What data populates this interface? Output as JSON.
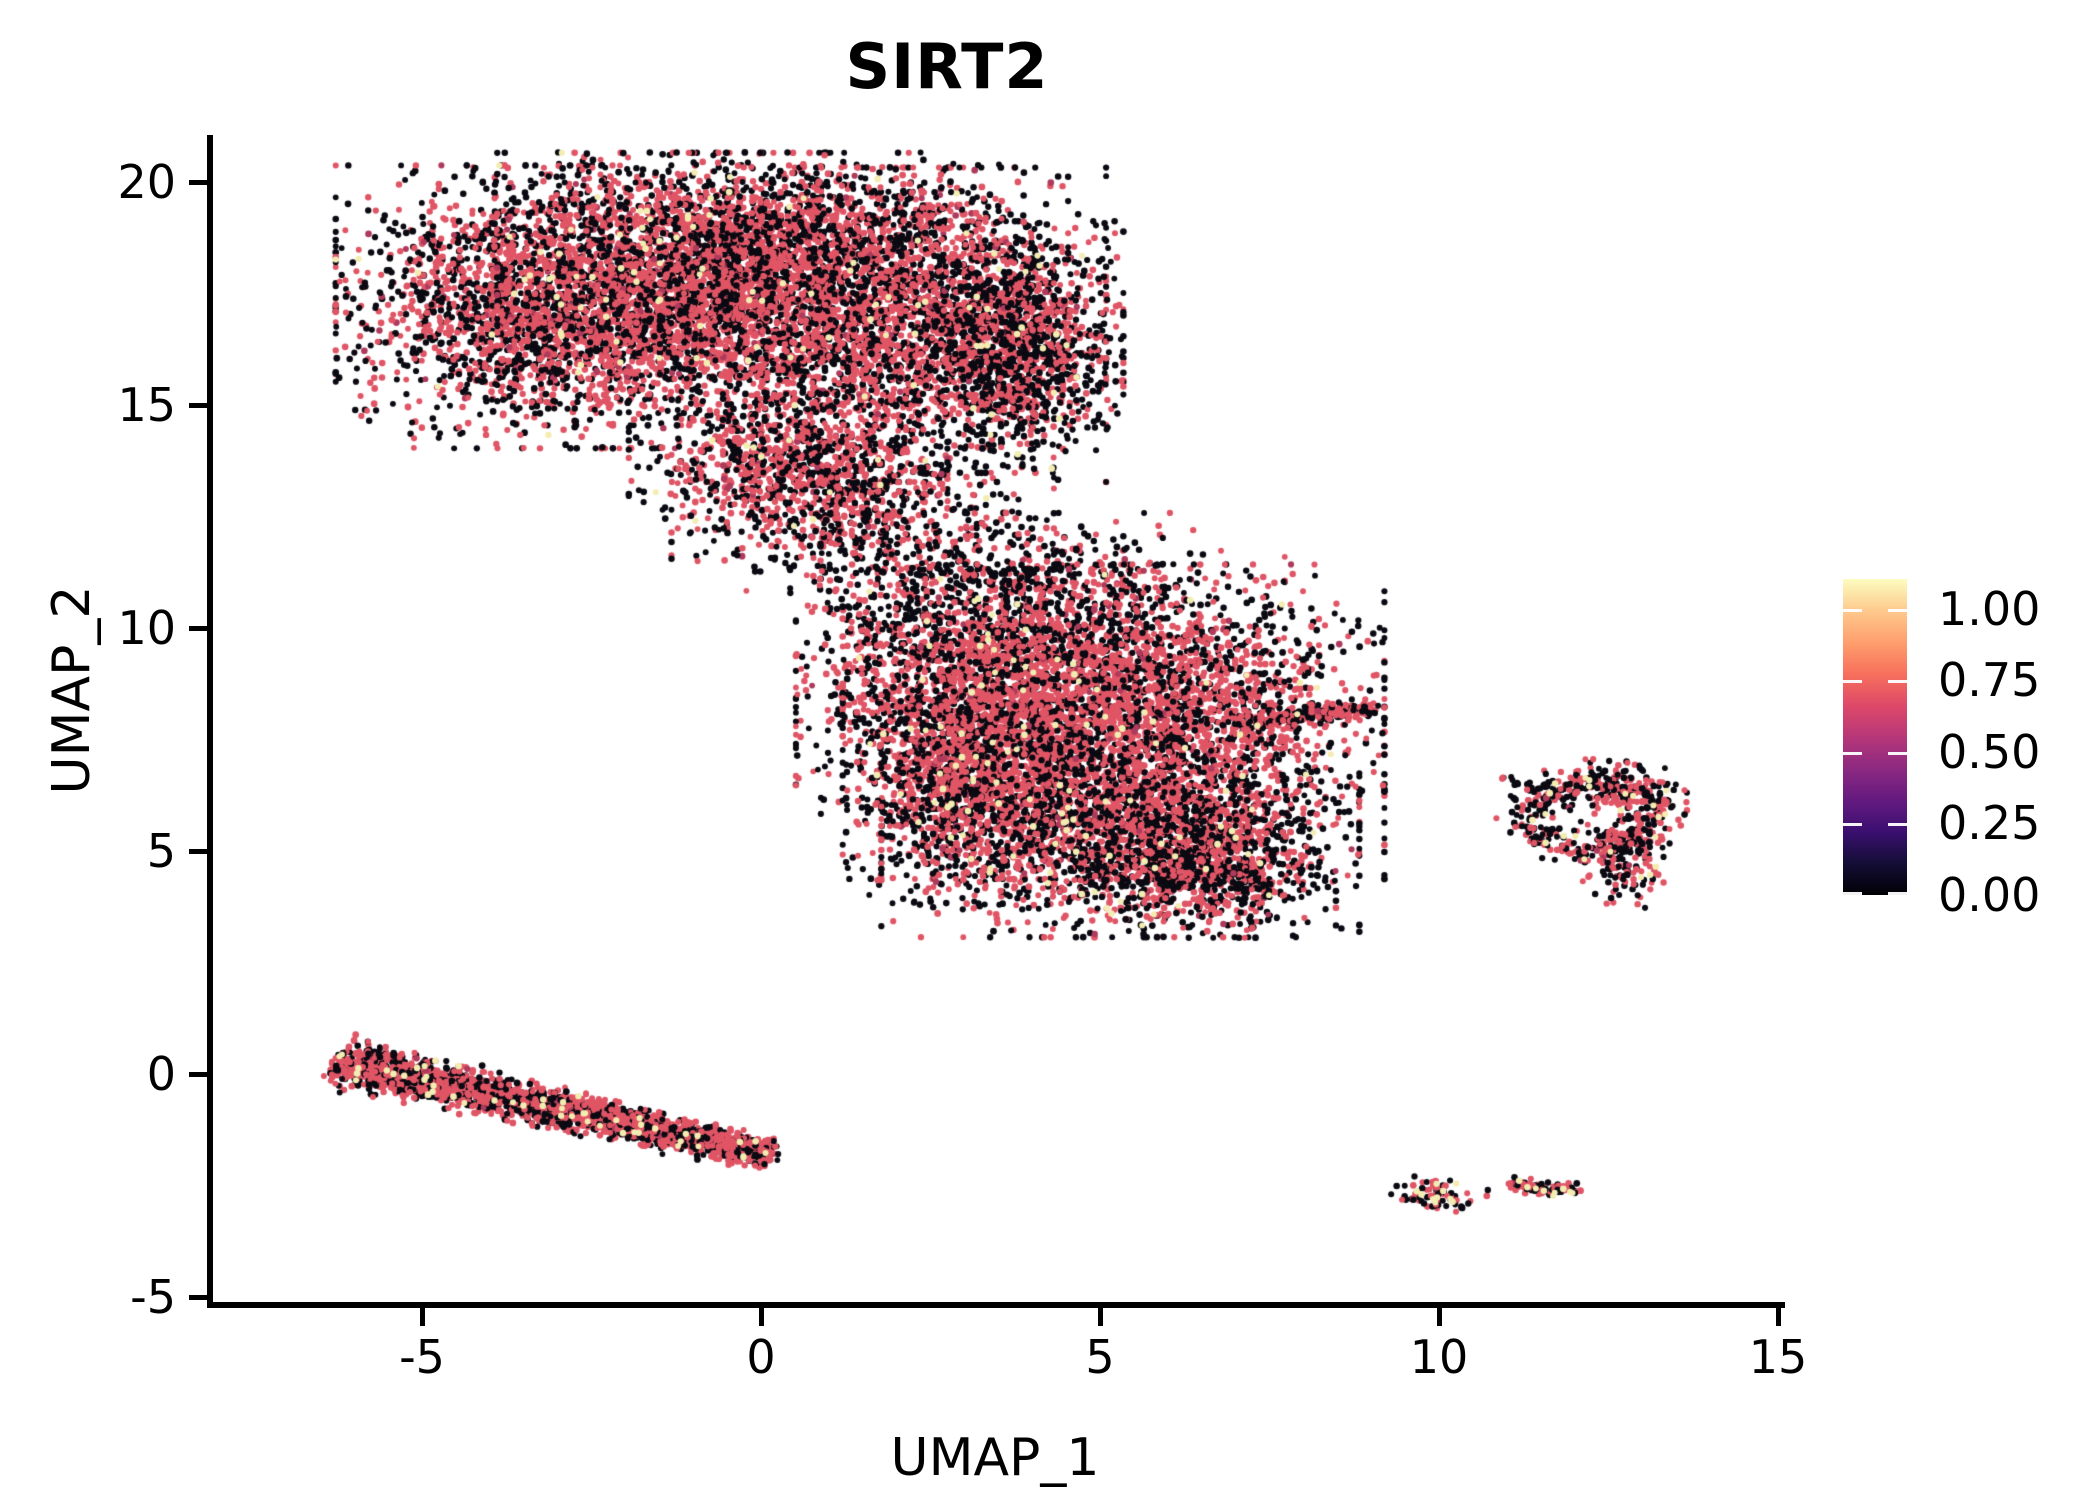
{
  "title": "SIRT2",
  "axes": {
    "x": {
      "label": "UMAP_1",
      "ticks": [
        "-5",
        "0",
        "5",
        "10",
        "15"
      ],
      "tick_values": [
        -5,
        0,
        5,
        10,
        15
      ]
    },
    "y": {
      "label": "UMAP_2",
      "ticks": [
        "20",
        "15",
        "10",
        "5",
        "0",
        "-5"
      ],
      "tick_values": [
        20,
        15,
        10,
        5,
        0,
        -5
      ]
    }
  },
  "colorbar": {
    "labels": [
      "1.00",
      "0.75",
      "0.50",
      "0.25",
      "0.00"
    ],
    "tick_values": [
      1.0,
      0.75,
      0.5,
      0.25,
      0.0
    ],
    "value_max": 1.104,
    "colormap_name": "magma",
    "gradient_stops": [
      "#000004",
      "#140E36",
      "#3B0F70",
      "#641A80",
      "#8C2981",
      "#B73779",
      "#DE4968",
      "#F7705C",
      "#FE9F6D",
      "#FEC98D",
      "#FCFDBF"
    ]
  },
  "point_palette": {
    "red": "#E05565",
    "black": "#0B0A12",
    "cream": "#F3EDB2",
    "dark": "#AE3A5C"
  },
  "chart_data": {
    "type": "scatter",
    "title": "SIRT2",
    "xlabel": "UMAP_1",
    "ylabel": "UMAP_2",
    "xlim": [
      -8.1,
      15.0
    ],
    "ylim": [
      -5.2,
      21.1
    ],
    "grid": false,
    "legend_position": "right-colorbar",
    "expression_levels": {
      "black": 0.0,
      "red": 0.7,
      "cream": 1.0
    },
    "point_radius_px": 3.1,
    "clusters": [
      {
        "name": "a-left",
        "type": "gaussian",
        "cx": -3.1,
        "cy": 17.2,
        "sx": 1.35,
        "sy": 1.35,
        "n": 2600,
        "r": 0.55,
        "b": 0.41,
        "c": 0.015,
        "eb": 0.35
      },
      {
        "name": "a-mid",
        "type": "gaussian",
        "cx": -0.6,
        "cy": 17.6,
        "sx": 1.4,
        "sy": 1.3,
        "n": 2600,
        "r": 0.6,
        "b": 0.37,
        "c": 0.013,
        "eb": 0.3
      },
      {
        "name": "a-right",
        "type": "gaussian",
        "cx": 1.8,
        "cy": 16.8,
        "sx": 1.4,
        "sy": 1.5,
        "n": 2300,
        "r": 0.58,
        "b": 0.39,
        "c": 0.012,
        "eb": 0.3
      },
      {
        "name": "a-right-edge",
        "type": "gaussian",
        "cx": 3.7,
        "cy": 16.3,
        "sx": 0.7,
        "sy": 1.2,
        "n": 1300,
        "r": 0.42,
        "b": 0.56,
        "c": 0.008,
        "eb": 0.35
      },
      {
        "name": "a-top",
        "type": "gaussian",
        "cx": 0.3,
        "cy": 18.9,
        "sx": 1.8,
        "sy": 0.75,
        "n": 900,
        "r": 0.52,
        "b": 0.46,
        "c": 0.008,
        "eb": 0.3
      },
      {
        "name": "a-bottom",
        "type": "gaussian",
        "cx": 0.4,
        "cy": 13.6,
        "sx": 1.0,
        "sy": 0.7,
        "n": 800,
        "r": 0.55,
        "b": 0.42,
        "c": 0.01,
        "eb": 0.3
      },
      {
        "name": "bridge",
        "type": "gaussian",
        "cx": 1.5,
        "cy": 12.3,
        "sx": 1.2,
        "sy": 0.9,
        "n": 550,
        "r": 0.43,
        "b": 0.55,
        "c": 0.005,
        "eb": 0.2
      },
      {
        "name": "b-top",
        "type": "gaussian",
        "cx": 4.2,
        "cy": 10.7,
        "sx": 1.5,
        "sy": 0.8,
        "n": 650,
        "r": 0.45,
        "b": 0.53,
        "c": 0.006,
        "eb": 0.2
      },
      {
        "name": "b-left",
        "type": "gaussian",
        "cx": 3.1,
        "cy": 8.5,
        "sx": 1.1,
        "sy": 1.2,
        "n": 1500,
        "r": 0.58,
        "b": 0.4,
        "c": 0.012,
        "eb": 0.3
      },
      {
        "name": "b-left-low",
        "type": "gaussian",
        "cx": 2.9,
        "cy": 6.1,
        "sx": 0.7,
        "sy": 0.95,
        "n": 650,
        "r": 0.5,
        "b": 0.47,
        "c": 0.018,
        "eb": 0.3
      },
      {
        "name": "b-main",
        "type": "gaussian",
        "cx": 5.2,
        "cy": 7.9,
        "sx": 1.7,
        "sy": 1.5,
        "n": 3600,
        "r": 0.6,
        "b": 0.37,
        "c": 0.013,
        "eb": 0.3
      },
      {
        "name": "b-bottom",
        "type": "gaussian",
        "cx": 5.3,
        "cy": 5.3,
        "sx": 1.5,
        "sy": 0.95,
        "n": 1700,
        "r": 0.5,
        "b": 0.46,
        "c": 0.022,
        "eb": 0.35
      },
      {
        "name": "b-bot-edge",
        "type": "gaussian",
        "cx": 6.6,
        "cy": 4.7,
        "sx": 0.8,
        "sy": 0.7,
        "n": 700,
        "r": 0.42,
        "b": 0.55,
        "c": 0.012,
        "eb": 0.35
      },
      {
        "name": "b-tip",
        "type": "line",
        "x1": 7.0,
        "y1": 7.85,
        "x2": 9.05,
        "y2": 8.2,
        "w1": 0.3,
        "w2": 0.12,
        "n": 240,
        "r": 0.55,
        "b": 0.43,
        "c": 0.005
      },
      {
        "name": "d-ring",
        "type": "ring",
        "cx": 12.27,
        "cy": 5.8,
        "r0": 0.85,
        "sr": 0.2,
        "ax": 1.08,
        "ay": 0.88,
        "n": 390,
        "r": 0.42,
        "b": 0.52,
        "c": 0.05
      },
      {
        "name": "d-top",
        "type": "gaussian",
        "cx": 12.6,
        "cy": 6.4,
        "sx": 0.45,
        "sy": 0.28,
        "n": 120,
        "r": 0.48,
        "b": 0.45,
        "c": 0.06,
        "eb": 0.1
      },
      {
        "name": "d-bottom",
        "type": "gaussian",
        "cx": 12.75,
        "cy": 4.9,
        "sx": 0.28,
        "sy": 0.5,
        "n": 150,
        "r": 0.38,
        "b": 0.58,
        "c": 0.03,
        "eb": 0.1
      },
      {
        "name": "d-trail",
        "type": "line",
        "x1": 10.85,
        "y1": 6.6,
        "x2": 11.85,
        "y2": 6.25,
        "w1": 0.13,
        "w2": 0.13,
        "n": 28,
        "r": 0.45,
        "b": 0.52,
        "c": 0.02
      },
      {
        "name": "c-body",
        "type": "line",
        "x1": -6.25,
        "y1": 0.3,
        "x2": 0.15,
        "y2": -1.82,
        "w1": 0.5,
        "w2": 0.26,
        "n": 2500,
        "r": 0.6,
        "b": 0.37,
        "c": 0.015
      },
      {
        "name": "e-blob",
        "type": "gaussian",
        "cx": 10.0,
        "cy": -2.68,
        "sx": 0.3,
        "sy": 0.22,
        "n": 80,
        "r": 0.5,
        "b": 0.38,
        "c": 0.1,
        "eb": 0.1
      },
      {
        "name": "f-line",
        "type": "line",
        "x1": 11.05,
        "y1": -2.48,
        "x2": 12.05,
        "y2": -2.62,
        "w1": 0.1,
        "w2": 0.1,
        "n": 85,
        "r": 0.5,
        "b": 0.44,
        "c": 0.05
      },
      {
        "name": "outliers",
        "type": "points",
        "pts": [
          {
            "x": 6.7,
            "y": 3.6,
            "color": "red"
          },
          {
            "x": 10.72,
            "y": -2.6,
            "color": "black"
          }
        ]
      }
    ]
  }
}
